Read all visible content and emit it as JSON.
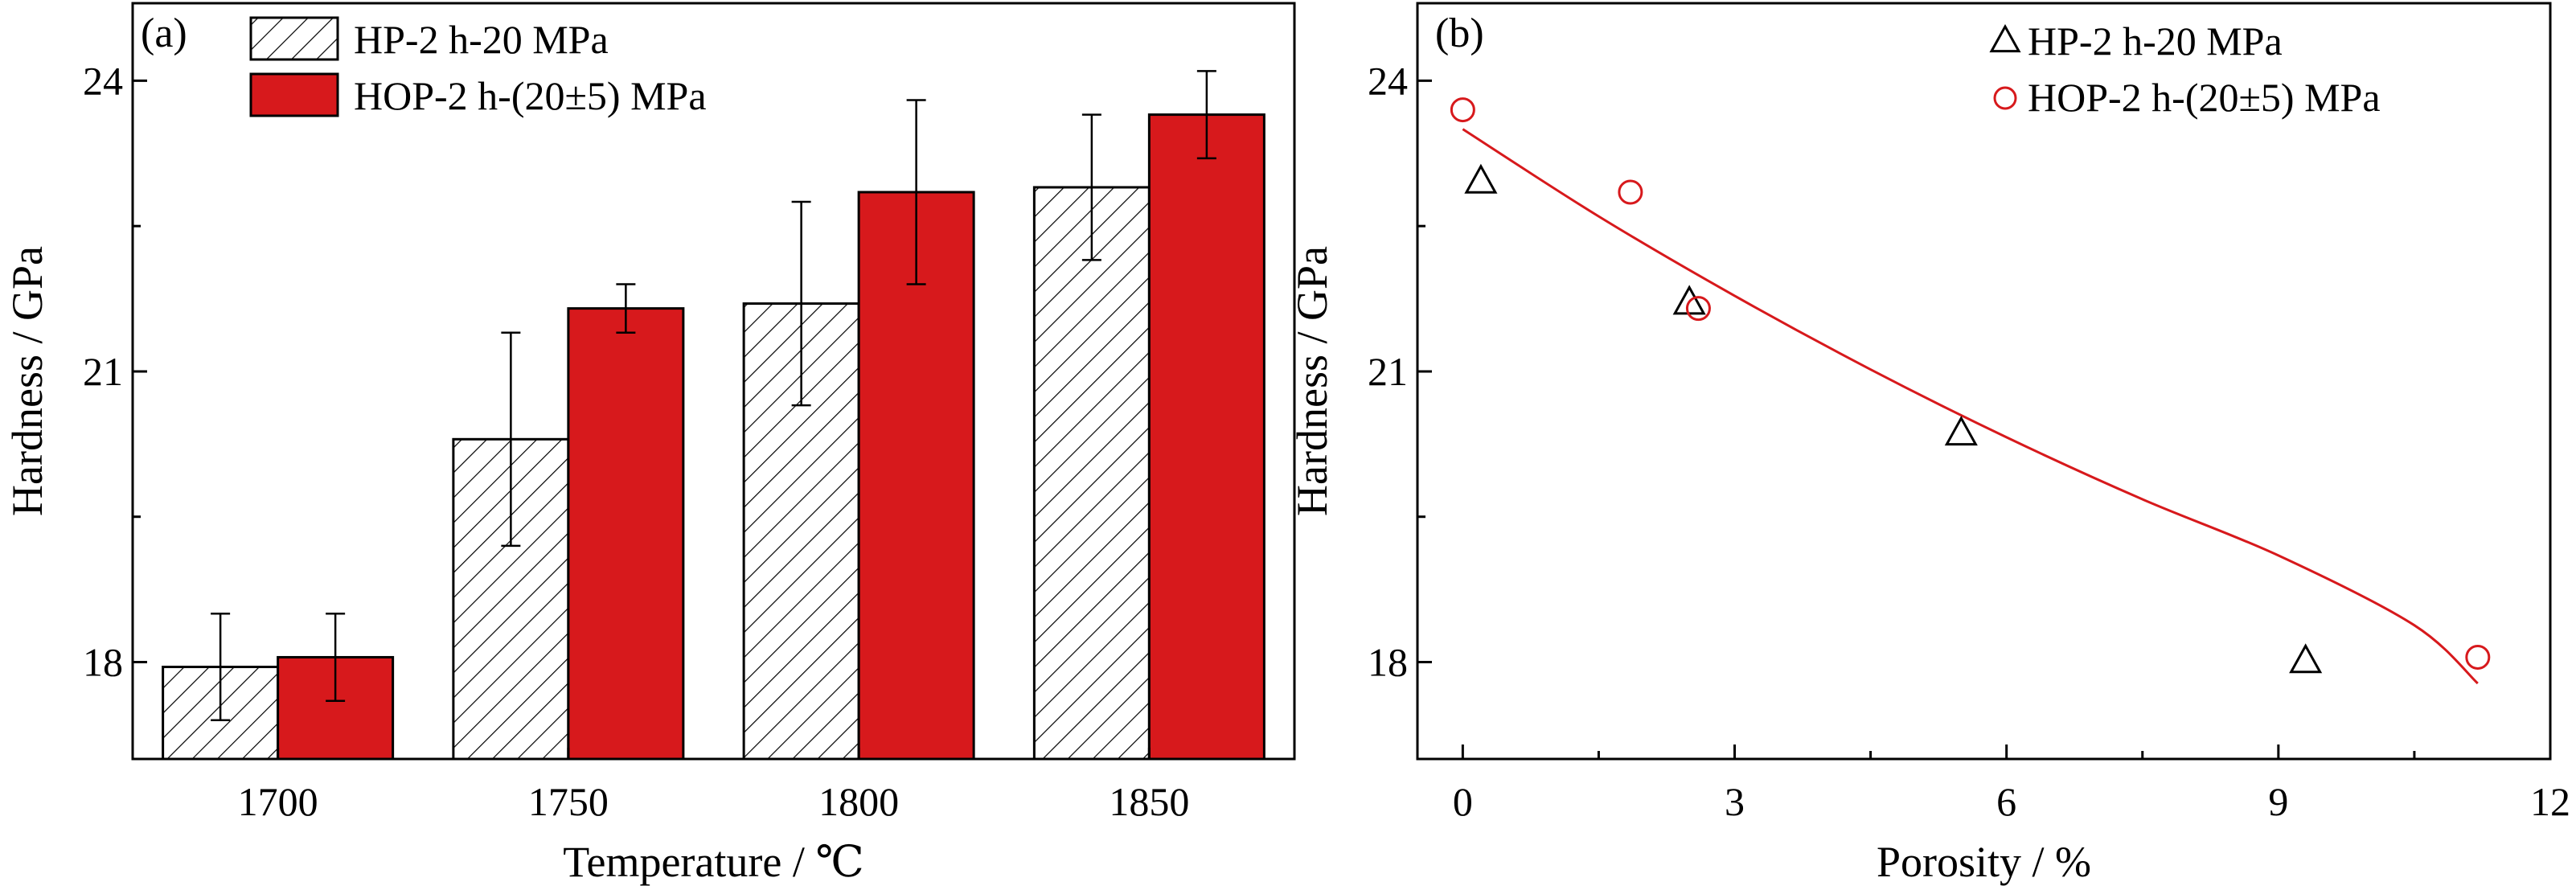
{
  "chart_data": [
    {
      "panel": "(a)",
      "type": "bar",
      "title": "",
      "xlabel": "Temperature / ℃",
      "ylabel": "Hardness / GPa",
      "ylim": [
        17.0,
        24.8
      ],
      "yticks": [
        18,
        21,
        24
      ],
      "categories": [
        "1700",
        "1750",
        "1800",
        "1850"
      ],
      "legend_placement": "top-left",
      "grid": false,
      "series": [
        {
          "name": "HP-2 h-20 MPa",
          "style": "hatched",
          "color": "#ffffff",
          "values": [
            17.95,
            20.3,
            21.7,
            22.9
          ],
          "errors": [
            0.55,
            1.1,
            1.05,
            0.75
          ]
        },
        {
          "name": "HOP-2 h-(20±5) MPa",
          "style": "solid",
          "color": "#d7191c",
          "values": [
            18.05,
            21.65,
            22.85,
            23.65
          ],
          "errors": [
            0.45,
            0.25,
            0.95,
            0.45
          ]
        }
      ]
    },
    {
      "panel": "(b)",
      "type": "scatter",
      "title": "",
      "xlabel": "Porosity / %",
      "ylabel": "Hardness / GPa",
      "xlim": [
        -0.5,
        12
      ],
      "ylim": [
        17.0,
        24.8
      ],
      "xticks": [
        0,
        3,
        6,
        9,
        12
      ],
      "yticks": [
        18,
        21,
        24
      ],
      "legend_placement": "top-right",
      "grid": false,
      "series": [
        {
          "name": "HP-2 h-20 MPa",
          "marker": "triangle",
          "color": "#000000",
          "x": [
            0.2,
            2.5,
            5.5,
            9.3
          ],
          "y": [
            22.95,
            21.7,
            20.35,
            18.0
          ]
        },
        {
          "name": "HOP-2 h-(20±5) MPa",
          "marker": "circle",
          "color": "#d7191c",
          "x": [
            0.0,
            1.85,
            2.6,
            11.2
          ],
          "y": [
            23.7,
            22.85,
            21.65,
            18.05
          ]
        }
      ],
      "fit_line": {
        "color": "#d7191c",
        "x": [
          0.0,
          1.5,
          3.0,
          4.5,
          6.0,
          7.5,
          9.0,
          10.5,
          11.2
        ],
        "y": [
          23.5,
          22.6,
          21.78,
          21.02,
          20.32,
          19.68,
          19.1,
          18.38,
          17.78
        ]
      }
    }
  ]
}
